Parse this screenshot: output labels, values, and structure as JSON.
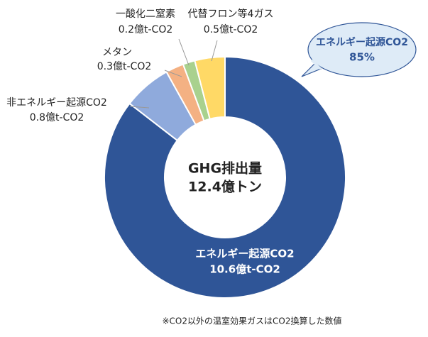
{
  "chart_data": {
    "type": "pie",
    "categories": [
      "エネルギー起源CO2",
      "非エネルギー起源CO2",
      "メタン",
      "一酸化二窒素",
      "代替フロン等4ガス"
    ],
    "values": [
      10.6,
      0.8,
      0.3,
      0.2,
      0.5
    ],
    "value_labels": [
      "10.6億t-CO2",
      "0.8億t-CO2",
      "0.3億t-CO2",
      "0.2億t-CO2",
      "0.5億t-CO2"
    ],
    "colors": [
      "#2f5597",
      "#8faadc",
      "#f4b183",
      "#a9d18e",
      "#ffd966"
    ],
    "center_text": [
      "GHG排出量",
      "12.4億トン"
    ],
    "callout": {
      "label": "エネルギー起源CO2",
      "text": "85%"
    },
    "footnote": "※CO2以外の温室効果ガスはCO2換算した数値"
  }
}
